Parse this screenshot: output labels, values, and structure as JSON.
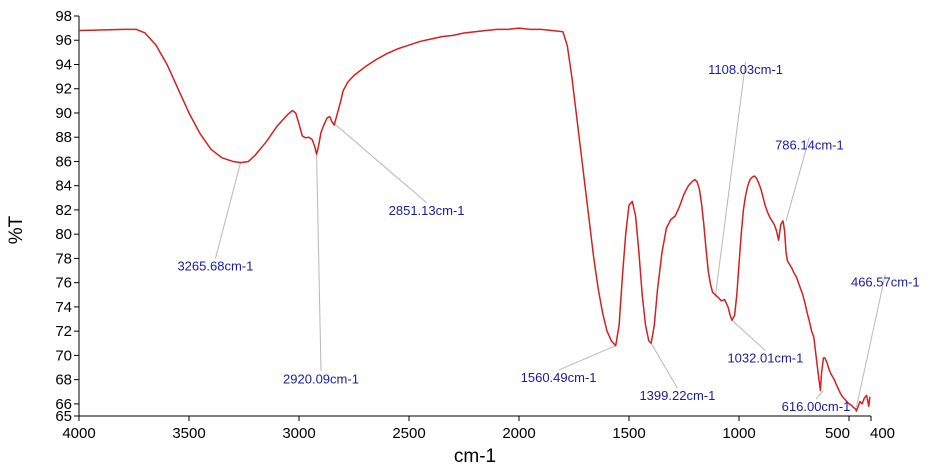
{
  "chart_data": {
    "type": "line",
    "xlabel": "cm-1",
    "ylabel": "%T",
    "xlim": [
      4000,
      400
    ],
    "x_reversed": true,
    "ylim": [
      65,
      98
    ],
    "x_ticks": [
      4000,
      3500,
      3000,
      2500,
      2000,
      1500,
      1000,
      500,
      400
    ],
    "x_tick_labels": [
      "4000",
      "3500",
      "3000",
      "2500",
      "2000",
      "1500",
      "1000",
      "500",
      "400"
    ],
    "y_ticks": [
      65,
      66,
      68,
      70,
      72,
      74,
      76,
      78,
      80,
      82,
      84,
      86,
      88,
      90,
      92,
      94,
      96,
      98
    ],
    "y_tick_labels": [
      "65",
      "66",
      "68",
      "70",
      "72",
      "74",
      "76",
      "78",
      "80",
      "82",
      "84",
      "86",
      "88",
      "90",
      "92",
      "94",
      "96",
      "98"
    ],
    "grid": false,
    "legend": "none",
    "colors": {
      "line": "#d42020",
      "annotation_text": "#1a1aa6",
      "leader": "#b8b8b8"
    },
    "series": [
      {
        "x": [
          4000,
          3900,
          3800,
          3740,
          3700,
          3650,
          3600,
          3550,
          3500,
          3450,
          3400,
          3350,
          3300,
          3265.68,
          3230,
          3200,
          3150,
          3100,
          3050,
          3030,
          3015,
          3000,
          2985,
          2970,
          2955,
          2940,
          2928,
          2920.09,
          2912,
          2900,
          2885,
          2872,
          2860,
          2851.13,
          2840,
          2825,
          2810,
          2800,
          2780,
          2750,
          2700,
          2650,
          2600,
          2550,
          2500,
          2450,
          2400,
          2350,
          2300,
          2250,
          2200,
          2150,
          2100,
          2050,
          2000,
          1950,
          1900,
          1850,
          1800,
          1780,
          1760,
          1740,
          1720,
          1700,
          1680,
          1660,
          1640,
          1620,
          1600,
          1580,
          1560.49,
          1545,
          1530,
          1515,
          1500,
          1485,
          1470,
          1455,
          1440,
          1425,
          1410,
          1399.22,
          1385,
          1370,
          1350,
          1330,
          1310,
          1290,
          1270,
          1250,
          1230,
          1210,
          1200,
          1190,
          1180,
          1170,
          1160,
          1150,
          1140,
          1130,
          1120,
          1108.03,
          1095,
          1080,
          1065,
          1050,
          1040,
          1032.01,
          1020,
          1010,
          1000,
          990,
          980,
          970,
          960,
          950,
          940,
          930,
          920,
          910,
          900,
          890,
          880,
          870,
          860,
          850,
          840,
          830,
          820,
          810,
          800,
          793,
          786.14,
          780,
          770,
          760,
          750,
          740,
          730,
          720,
          710,
          700,
          690,
          680,
          670,
          660,
          650,
          640,
          630,
          625,
          616,
          610,
          600,
          590,
          580,
          570,
          560,
          550,
          540,
          530,
          520,
          510,
          500,
          490,
          480,
          470,
          466.57,
          460,
          450,
          440,
          430,
          420,
          410,
          405
        ],
        "y": [
          96.8,
          96.85,
          96.9,
          96.9,
          96.6,
          95.6,
          94.0,
          92.0,
          90.0,
          88.3,
          87.0,
          86.3,
          86.0,
          85.9,
          86.0,
          86.5,
          87.6,
          88.9,
          89.9,
          90.2,
          90.0,
          89.1,
          88.1,
          87.95,
          88.0,
          87.8,
          87.2,
          86.6,
          87.2,
          88.4,
          89.1,
          89.6,
          89.7,
          89.3,
          89.0,
          90.0,
          91.0,
          91.8,
          92.5,
          93.1,
          93.8,
          94.4,
          94.9,
          95.3,
          95.6,
          95.9,
          96.1,
          96.3,
          96.4,
          96.6,
          96.7,
          96.8,
          96.9,
          96.9,
          97.0,
          96.9,
          96.9,
          96.8,
          96.7,
          95.5,
          93.0,
          90.0,
          87.0,
          84.0,
          81.0,
          78.0,
          75.5,
          73.5,
          72.0,
          71.2,
          70.8,
          72.5,
          76.5,
          80.0,
          82.4,
          82.7,
          81.5,
          78.5,
          75.0,
          72.5,
          71.2,
          71.0,
          72.5,
          75.5,
          78.5,
          80.5,
          81.2,
          81.5,
          82.3,
          83.3,
          84.0,
          84.4,
          84.5,
          84.3,
          83.7,
          82.5,
          80.8,
          78.8,
          77.0,
          75.9,
          75.2,
          75.0,
          74.8,
          74.5,
          74.6,
          74.0,
          73.3,
          72.9,
          73.3,
          75.0,
          77.5,
          80.0,
          82.0,
          83.2,
          84.0,
          84.5,
          84.7,
          84.8,
          84.6,
          84.2,
          83.7,
          83.0,
          82.3,
          81.8,
          81.4,
          81.1,
          80.8,
          80.3,
          79.5,
          80.8,
          81.1,
          80.3,
          78.5,
          77.8,
          77.5,
          77.2,
          76.8,
          76.5,
          76.0,
          75.5,
          75.0,
          74.3,
          73.5,
          72.8,
          72.0,
          71.5,
          70.0,
          68.5,
          67.1,
          68.5,
          69.8,
          69.8,
          69.4,
          68.8,
          68.4,
          68.1,
          67.7,
          67.3,
          66.9,
          66.6,
          66.4,
          66.2,
          66.0,
          65.9,
          65.7,
          65.6,
          65.4,
          65.7,
          66.2,
          66.0,
          66.5,
          66.7,
          65.8,
          66.6
        ]
      }
    ],
    "annotations": [
      {
        "label": "3265.68cm-1",
        "x": 3265.68,
        "y": 85.9,
        "text_x": 3380,
        "text_y": 77.0
      },
      {
        "label": "2920.09cm-1",
        "x": 2920.09,
        "y": 86.6,
        "text_x": 2900,
        "text_y": 67.7
      },
      {
        "label": "2851.13cm-1",
        "x": 2851.13,
        "y": 89.3,
        "text_x": 2420,
        "text_y": 81.6
      },
      {
        "label": "1560.49cm-1",
        "x": 1560.49,
        "y": 70.8,
        "text_x": 1820,
        "text_y": 67.8
      },
      {
        "label": "1399.22cm-1",
        "x": 1399.22,
        "y": 71.0,
        "text_x": 1280,
        "text_y": 66.3
      },
      {
        "label": "1108.03cm-1",
        "x": 1108.03,
        "y": 74.8,
        "text_x": 970,
        "text_y": 93.2
      },
      {
        "label": "1032.01cm-1",
        "x": 1032.01,
        "y": 72.9,
        "text_x": 880,
        "text_y": 69.4
      },
      {
        "label": "786.14cm-1",
        "x": 786.14,
        "y": 81.1,
        "text_x": 680,
        "text_y": 87.0
      },
      {
        "label": "616.00cm-1",
        "x": 616.0,
        "y": 67.1,
        "text_x": 650,
        "text_y": 65.4
      },
      {
        "label": "466.57cm-1",
        "x": 466.57,
        "y": 65.7,
        "text_x": 335,
        "text_y": 75.7
      }
    ]
  }
}
